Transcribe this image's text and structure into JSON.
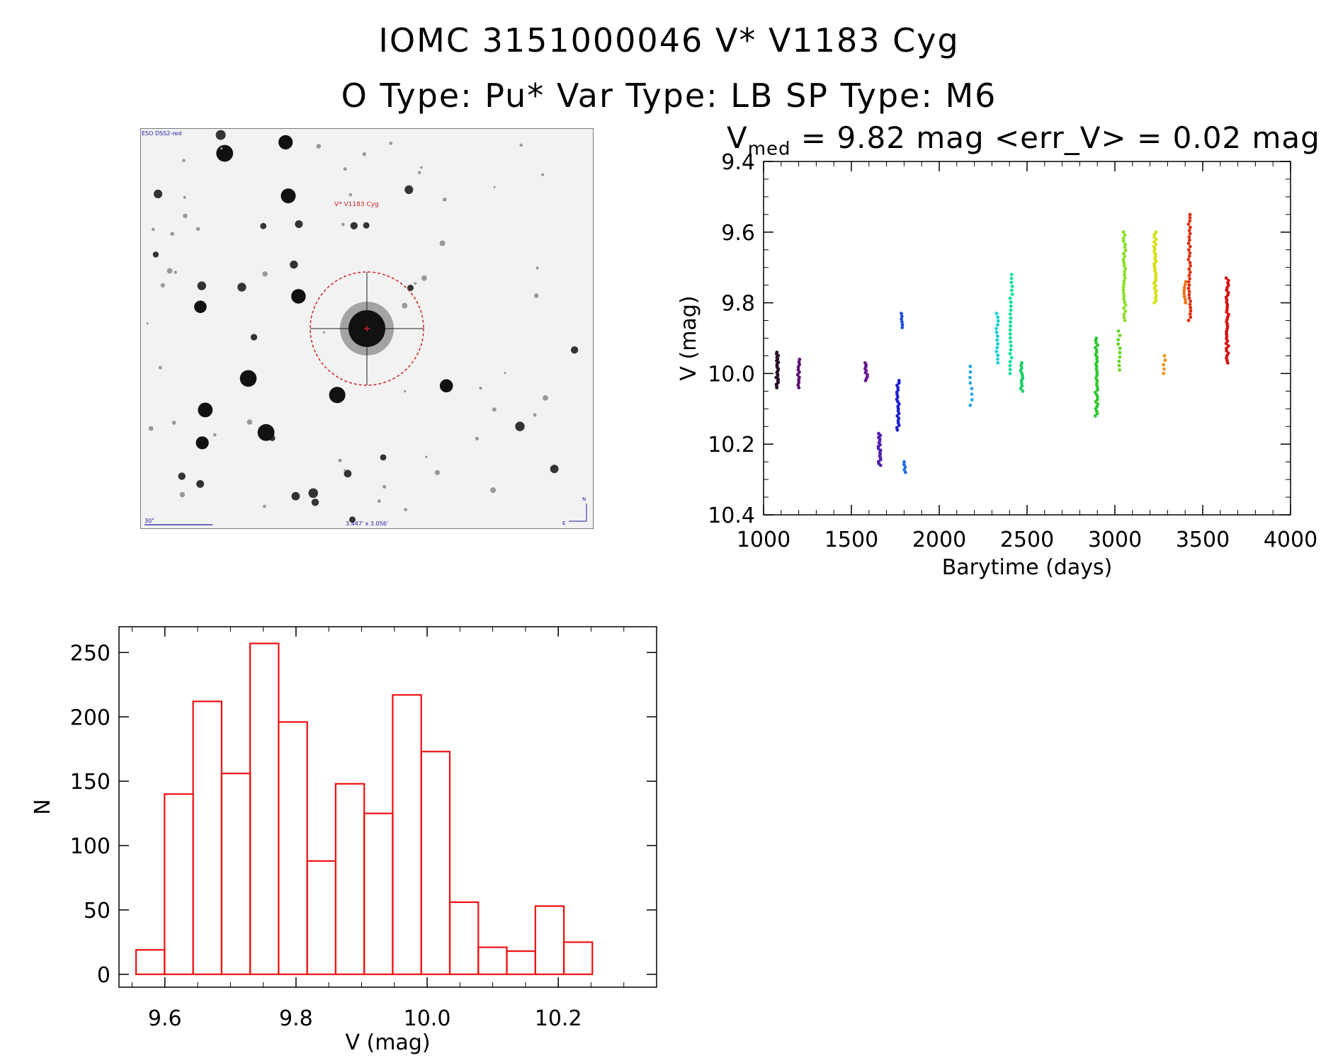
{
  "header": {
    "title_line1": "IOMC 3151000046    V* V1183 Cyg",
    "title_line2": "O Type: Pu*   Var Type: LB   SP Type: M6",
    "vmed_prefix": "V",
    "vmed_sub": "med",
    "vmed_rest": " = 9.82 mag <err_V> = 0.02 mag"
  },
  "image_panel": {
    "survey_label": "ESO DSS2-red",
    "target_label": "V* V1183 Cyg",
    "scale_label": "30\"",
    "fov_label": "3.447' x 3.056'",
    "north_label": "N",
    "east_label": "E",
    "colors": {
      "circle": "#cc2222",
      "labels": "#1a1aa0",
      "target": "#cc2222"
    }
  },
  "chart_data": [
    {
      "type": "scatter",
      "title": "",
      "xlabel": "Barytime (days)",
      "ylabel": "V (mag)",
      "xlim": [
        1000,
        4000
      ],
      "ylim": [
        9.4,
        10.4
      ],
      "y_inverted": true,
      "xticks": [
        1000,
        1500,
        2000,
        2500,
        3000,
        3500,
        4000
      ],
      "xtick_labels": [
        "1000",
        "1500",
        "2000",
        "2500",
        "3000",
        "3500",
        "4000"
      ],
      "yticks": [
        9.4,
        9.6,
        9.8,
        10.0,
        10.2,
        10.4
      ],
      "ytick_labels": [
        "9.4",
        "9.6",
        "9.8",
        "10.0",
        "10.2",
        "10.4"
      ],
      "grid": false,
      "groups": [
        {
          "x": 1078,
          "ymin": 9.94,
          "ymax": 10.04,
          "color": "#2a0a2a",
          "n": 22
        },
        {
          "x": 1200,
          "ymin": 9.96,
          "ymax": 10.04,
          "color": "#5a1070",
          "n": 12
        },
        {
          "x": 1585,
          "ymin": 9.97,
          "ymax": 10.02,
          "color": "#6a1a90",
          "n": 10
        },
        {
          "x": 1660,
          "ymin": 10.17,
          "ymax": 10.26,
          "color": "#5020b0",
          "n": 18
        },
        {
          "x": 1765,
          "ymin": 10.02,
          "ymax": 10.16,
          "color": "#2020d0",
          "n": 22
        },
        {
          "x": 1785,
          "ymin": 9.83,
          "ymax": 9.87,
          "color": "#2050d8",
          "n": 6
        },
        {
          "x": 1805,
          "ymin": 10.25,
          "ymax": 10.28,
          "color": "#2070e0",
          "n": 5
        },
        {
          "x": 2180,
          "ymin": 9.98,
          "ymax": 10.09,
          "color": "#20a8e8",
          "n": 8
        },
        {
          "x": 2330,
          "ymin": 9.83,
          "ymax": 9.97,
          "color": "#10d0d0",
          "n": 14
        },
        {
          "x": 2410,
          "ymin": 9.72,
          "ymax": 10.0,
          "color": "#10e0a0",
          "n": 26
        },
        {
          "x": 2470,
          "ymin": 9.97,
          "ymax": 10.05,
          "color": "#10d060",
          "n": 12
        },
        {
          "x": 2895,
          "ymin": 9.9,
          "ymax": 10.12,
          "color": "#30c830",
          "n": 34
        },
        {
          "x": 3025,
          "ymin": 9.88,
          "ymax": 9.99,
          "color": "#60d820",
          "n": 10
        },
        {
          "x": 3055,
          "ymin": 9.6,
          "ymax": 9.85,
          "color": "#88e020",
          "n": 30
        },
        {
          "x": 3230,
          "ymin": 9.6,
          "ymax": 9.8,
          "color": "#d8e010",
          "n": 30
        },
        {
          "x": 3280,
          "ymin": 9.95,
          "ymax": 10.0,
          "color": "#f09010",
          "n": 5
        },
        {
          "x": 3400,
          "ymin": 9.74,
          "ymax": 9.8,
          "color": "#f07010",
          "n": 8
        },
        {
          "x": 3425,
          "ymin": 9.55,
          "ymax": 9.85,
          "color": "#e03010",
          "n": 34
        },
        {
          "x": 3640,
          "ymin": 9.73,
          "ymax": 9.97,
          "color": "#d81010",
          "n": 36
        }
      ]
    },
    {
      "type": "bar",
      "subtype": "histogram",
      "xlabel": "V (mag)",
      "ylabel": "N",
      "xlim": [
        9.53,
        10.35
      ],
      "ylim": [
        -10,
        270
      ],
      "xticks": [
        9.6,
        9.8,
        10.0,
        10.2
      ],
      "xtick_labels": [
        "9.6",
        "9.8",
        "10.0",
        "10.2"
      ],
      "yticks": [
        0,
        50,
        100,
        150,
        200,
        250
      ],
      "ytick_labels": [
        "0",
        "50",
        "100",
        "150",
        "200",
        "250"
      ],
      "bin_start": 9.556,
      "bin_width": 0.0435,
      "values": [
        19,
        140,
        212,
        156,
        257,
        196,
        88,
        148,
        125,
        217,
        173,
        56,
        21,
        18,
        53,
        25
      ],
      "color": "#ee1111"
    }
  ]
}
